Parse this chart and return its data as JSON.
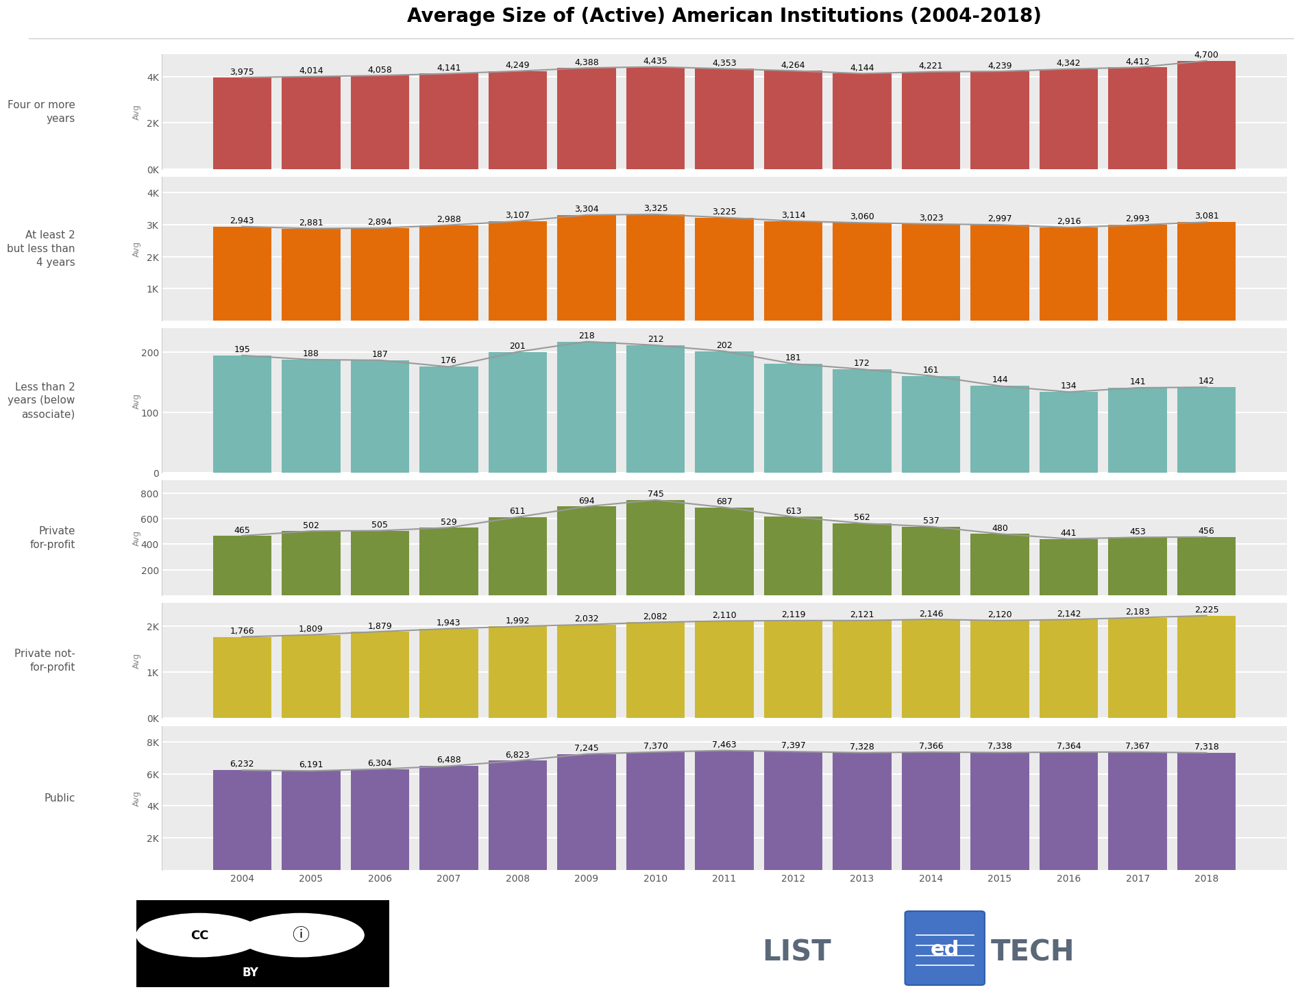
{
  "title": "Average Size of (Active) American Institutions (2004-2018)",
  "years": [
    2004,
    2005,
    2006,
    2007,
    2008,
    2009,
    2010,
    2011,
    2012,
    2013,
    2014,
    2015,
    2016,
    2017,
    2018
  ],
  "categories": [
    {
      "label": "Four or more\nyears",
      "values": [
        3975,
        4014,
        4058,
        4141,
        4249,
        4388,
        4435,
        4353,
        4264,
        4144,
        4221,
        4239,
        4342,
        4412,
        4700
      ],
      "color": "#c0504d",
      "ylim": [
        0,
        5000
      ],
      "yticks": [
        0,
        2000,
        4000
      ],
      "yticklabels": [
        "0K",
        "2K",
        "4K"
      ]
    },
    {
      "label": "At least 2\nbut less than\n4 years",
      "values": [
        2943,
        2881,
        2894,
        2988,
        3107,
        3304,
        3325,
        3225,
        3114,
        3060,
        3023,
        2997,
        2916,
        2993,
        3081
      ],
      "color": "#e36c09",
      "ylim": [
        0,
        4500
      ],
      "yticks": [
        1000,
        2000,
        3000,
        4000
      ],
      "yticklabels": [
        "1K",
        "2K",
        "3K",
        "4K"
      ]
    },
    {
      "label": "Less than 2\nyears (below\nassociate)",
      "values": [
        195,
        188,
        187,
        176,
        201,
        218,
        212,
        202,
        181,
        172,
        161,
        144,
        134,
        141,
        142
      ],
      "color": "#77b8b2",
      "ylim": [
        0,
        240
      ],
      "yticks": [
        0,
        100,
        200
      ],
      "yticklabels": [
        "0",
        "100",
        "200"
      ]
    },
    {
      "label": "Private\nfor-profit",
      "values": [
        465,
        502,
        505,
        529,
        611,
        694,
        745,
        687,
        613,
        562,
        537,
        480,
        441,
        453,
        456
      ],
      "color": "#76923c",
      "ylim": [
        0,
        900
      ],
      "yticks": [
        200,
        400,
        600,
        800
      ],
      "yticklabels": [
        "200",
        "400",
        "600",
        "800"
      ]
    },
    {
      "label": "Private not-\nfor-profit",
      "values": [
        1766,
        1809,
        1879,
        1943,
        1992,
        2032,
        2082,
        2110,
        2119,
        2121,
        2146,
        2120,
        2142,
        2183,
        2225
      ],
      "color": "#cdb833",
      "ylim": [
        0,
        2500
      ],
      "yticks": [
        0,
        1000,
        2000
      ],
      "yticklabels": [
        "0K",
        "1K",
        "2K"
      ]
    },
    {
      "label": "Public",
      "values": [
        6232,
        6191,
        6304,
        6488,
        6823,
        7245,
        7370,
        7463,
        7397,
        7328,
        7366,
        7338,
        7364,
        7367,
        7318
      ],
      "color": "#8064a2",
      "ylim": [
        0,
        9000
      ],
      "yticks": [
        2000,
        4000,
        6000,
        8000
      ],
      "yticklabels": [
        "2K",
        "4K",
        "6K",
        "8K"
      ]
    }
  ],
  "background_color": "#ffffff",
  "subplot_bg": "#ebebeb",
  "bar_width": 0.85,
  "title_fontsize": 20,
  "label_fontsize": 11,
  "value_fontsize": 9,
  "tick_fontsize": 10,
  "cat_label_fontsize": 11,
  "avg_fontsize": 9
}
